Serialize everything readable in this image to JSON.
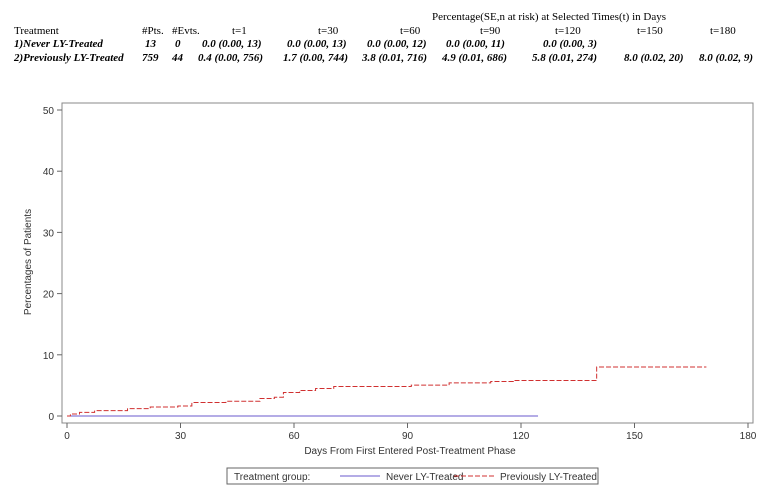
{
  "table": {
    "super_header": "Percentage(SE,n at risk) at Selected Times(t) in Days",
    "headers": [
      "Treatment",
      "#Pts.",
      "#Evts.",
      "t=1",
      "t=30",
      "t=60",
      "t=90",
      "t=120",
      "t=150",
      "t=180"
    ],
    "rows": [
      [
        "1)Never LY-Treated",
        "13",
        "0",
        "0.0 (0.00, 13)",
        "0.0 (0.00, 13)",
        "0.0 (0.00, 12)",
        "0.0 (0.00, 11)",
        "0.0 (0.00, 3)",
        "",
        ""
      ],
      [
        "2)Previously LY-Treated",
        "759",
        "44",
        "0.4 (0.00, 756)",
        "1.7 (0.00, 744)",
        "3.8 (0.01, 716)",
        "4.9 (0.01, 686)",
        "5.8 (0.01, 274)",
        "8.0 (0.02, 20)",
        "8.0 (0.02, 9)"
      ]
    ]
  },
  "chart_data": {
    "type": "line",
    "step": true,
    "xlabel": "Days From First Entered Post-Treatment Phase",
    "ylabel": "Percentages of Patients",
    "xlim": [
      0,
      180
    ],
    "ylim": [
      0,
      50
    ],
    "xticks": [
      0,
      30,
      60,
      90,
      120,
      150,
      180
    ],
    "yticks": [
      0,
      10,
      20,
      30,
      40,
      50
    ],
    "grid": false,
    "legend_title": "Treatment group:",
    "legend_position": "bottom",
    "series": [
      {
        "name": "Never LY-Treated",
        "color": "#6a5acd",
        "dash": "solid",
        "points": [
          [
            0,
            0
          ],
          [
            124.5,
            0
          ]
        ]
      },
      {
        "name": "Previously LY-Treated",
        "color": "#d03030",
        "dash": "dashed",
        "points": [
          [
            0,
            0
          ],
          [
            0.9,
            0.33
          ],
          [
            3.3,
            0.6
          ],
          [
            7.3,
            0.88
          ],
          [
            16,
            1.2
          ],
          [
            22,
            1.48
          ],
          [
            29.3,
            1.64
          ],
          [
            33,
            2.2
          ],
          [
            42,
            2.41
          ],
          [
            51,
            2.85
          ],
          [
            54.8,
            3.07
          ],
          [
            57.2,
            3.84
          ],
          [
            61.5,
            4.16
          ],
          [
            65.7,
            4.49
          ],
          [
            70.5,
            4.82
          ],
          [
            91,
            5.04
          ],
          [
            101,
            5.42
          ],
          [
            112,
            5.64
          ],
          [
            118,
            5.8
          ],
          [
            140,
            8.0
          ],
          [
            169,
            8.0
          ]
        ]
      }
    ]
  }
}
